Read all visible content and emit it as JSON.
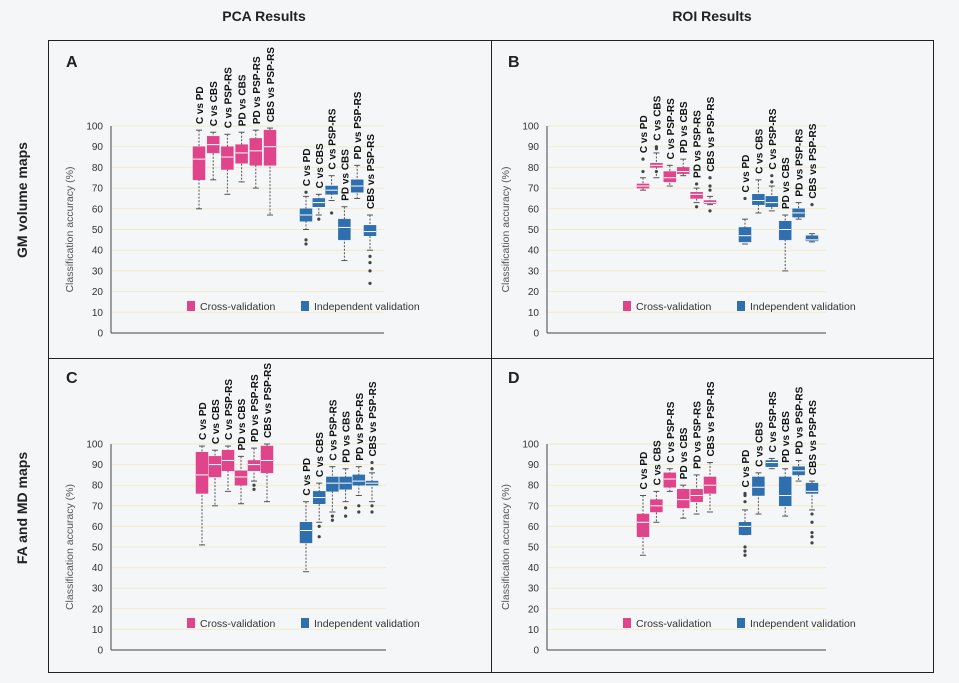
{
  "figure": {
    "col_headers": [
      "PCA Results",
      "ROI Results"
    ],
    "row_headers": [
      "GM volume maps",
      "FA and MD maps"
    ]
  },
  "colors": {
    "cross_validation": "#e0448a",
    "independent_validation": "#2f6fae",
    "frame": "#222222",
    "grid": "#f0ecc8"
  },
  "chart_data": [
    {
      "panel": "A",
      "type": "box",
      "ylabel": "Classification accuracy (%)",
      "ylim": [
        0,
        100
      ],
      "yticks": [
        0,
        10,
        20,
        30,
        40,
        50,
        60,
        70,
        80,
        90,
        100
      ],
      "legend": [
        "Cross-validation",
        "Independent validation"
      ],
      "groups": [
        {
          "name": "Cross-validation",
          "categories": [
            "C vs PD",
            "C vs CBS",
            "C vs PSP-RS",
            "PD vs CBS",
            "PD vs PSP-RS",
            "CBS vs PSP-RS"
          ],
          "boxes": [
            {
              "min": 60,
              "q1": 74,
              "median": 84,
              "q3": 90,
              "max": 98,
              "outliers": []
            },
            {
              "min": 74,
              "q1": 87,
              "median": 91,
              "q3": 95,
              "max": 97,
              "outliers": []
            },
            {
              "min": 67,
              "q1": 79,
              "median": 85,
              "q3": 90,
              "max": 96,
              "outliers": []
            },
            {
              "min": 73,
              "q1": 82,
              "median": 87,
              "q3": 91,
              "max": 97,
              "outliers": []
            },
            {
              "min": 70,
              "q1": 81,
              "median": 88,
              "q3": 94,
              "max": 98,
              "outliers": []
            },
            {
              "min": 57,
              "q1": 81,
              "median": 90,
              "q3": 98,
              "max": 99,
              "outliers": []
            }
          ]
        },
        {
          "name": "Independent validation",
          "categories": [
            "C vs PD",
            "C vs CBS",
            "C vs PSP-RS",
            "PD vs CBS",
            "PD vs PSP-RS",
            "CBS vs PSP-RS"
          ],
          "boxes": [
            {
              "min": 50,
              "q1": 54,
              "median": 57,
              "q3": 60,
              "max": 66,
              "outliers": [
                43,
                45,
                68
              ]
            },
            {
              "min": 57,
              "q1": 61,
              "median": 63,
              "q3": 65,
              "max": 67,
              "outliers": [
                55
              ]
            },
            {
              "min": 64,
              "q1": 67,
              "median": 69,
              "q3": 71,
              "max": 76,
              "outliers": [
                58
              ]
            },
            {
              "min": 35,
              "q1": 45,
              "median": 51,
              "q3": 55,
              "max": 61,
              "outliers": []
            },
            {
              "min": 65,
              "q1": 68,
              "median": 71,
              "q3": 74,
              "max": 81,
              "outliers": []
            },
            {
              "min": 40,
              "q1": 47,
              "median": 49,
              "q3": 52,
              "max": 57,
              "outliers": [
                24,
                30,
                34,
                37
              ]
            }
          ]
        }
      ]
    },
    {
      "panel": "B",
      "type": "box",
      "ylabel": "Classification accuracy (%)",
      "ylim": [
        0,
        100
      ],
      "yticks": [
        0,
        10,
        20,
        30,
        40,
        50,
        60,
        70,
        80,
        90,
        100
      ],
      "legend": [
        "Cross-validation",
        "Independent validation"
      ],
      "groups": [
        {
          "name": "Cross-validation",
          "categories": [
            "C vs PD",
            "C vs CBS",
            "C vs PSP-RS",
            "PD vs CBS",
            "PD vs PSP-RS",
            "CBS vs PSP-RS"
          ],
          "boxes": [
            {
              "min": 69,
              "q1": 70,
              "median": 71,
              "q3": 72,
              "max": 75,
              "outliers": [
                78,
                84
              ]
            },
            {
              "min": 75,
              "q1": 80,
              "median": 81,
              "q3": 82,
              "max": 87,
              "outliers": [
                89,
                90,
                78
              ]
            },
            {
              "min": 71,
              "q1": 73,
              "median": 75,
              "q3": 78,
              "max": 81,
              "outliers": []
            },
            {
              "min": 76,
              "q1": 77,
              "median": 78,
              "q3": 80,
              "max": 84,
              "outliers": []
            },
            {
              "min": 63,
              "q1": 65,
              "median": 67,
              "q3": 68,
              "max": 70,
              "outliers": [
                61,
                72
              ]
            },
            {
              "min": 62,
              "q1": 62.5,
              "median": 63,
              "q3": 64,
              "max": 66,
              "outliers": [
                59,
                69,
                71,
                75
              ]
            }
          ]
        },
        {
          "name": "Independent validation",
          "categories": [
            "C vs PD",
            "C vs CBS",
            "C vs PSP-RS",
            "PD vs CBS",
            "PD vs PSP-RS",
            "CBS vs PSP-RS"
          ],
          "boxes": [
            {
              "min": 43,
              "q1": 44,
              "median": 47,
              "q3": 51,
              "max": 55,
              "outliers": [
                65
              ]
            },
            {
              "min": 58,
              "q1": 62,
              "median": 64,
              "q3": 67,
              "max": 74,
              "outliers": []
            },
            {
              "min": 59,
              "q1": 61,
              "median": 63,
              "q3": 66,
              "max": 71,
              "outliers": [
                73,
                76
              ]
            },
            {
              "min": 30,
              "q1": 45,
              "median": 50,
              "q3": 54,
              "max": 57,
              "outliers": []
            },
            {
              "min": 55,
              "q1": 56,
              "median": 58,
              "q3": 60,
              "max": 63,
              "outliers": []
            },
            {
              "min": 44,
              "q1": 44.5,
              "median": 45,
              "q3": 47,
              "max": 48,
              "outliers": [
                62
              ]
            }
          ]
        }
      ]
    },
    {
      "panel": "C",
      "type": "box",
      "ylabel": "Classification accuracy (%)",
      "ylim": [
        0,
        100
      ],
      "yticks": [
        0,
        10,
        20,
        30,
        40,
        50,
        60,
        70,
        80,
        90,
        100
      ],
      "legend": [
        "Cross-validation",
        "Independent validation"
      ],
      "groups": [
        {
          "name": "Cross-validation",
          "categories": [
            "C vs PD",
            "C vs CBS",
            "C vs PSP-RS",
            "PD vs CBS",
            "PD vs PSP-RS",
            "CBS vs PSP-RS"
          ],
          "boxes": [
            {
              "min": 51,
              "q1": 76,
              "median": 85,
              "q3": 96,
              "max": 99,
              "outliers": []
            },
            {
              "min": 70,
              "q1": 84,
              "median": 90,
              "q3": 94,
              "max": 97,
              "outliers": []
            },
            {
              "min": 77,
              "q1": 87,
              "median": 92,
              "q3": 97,
              "max": 99,
              "outliers": []
            },
            {
              "min": 71,
              "q1": 80,
              "median": 84,
              "q3": 87,
              "max": 94,
              "outliers": []
            },
            {
              "min": 82,
              "q1": 87,
              "median": 90,
              "q3": 92,
              "max": 98,
              "outliers": [
                78,
                80
              ]
            },
            {
              "min": 72,
              "q1": 86,
              "median": 92,
              "q3": 99,
              "max": 100,
              "outliers": []
            }
          ]
        },
        {
          "name": "Independent validation",
          "categories": [
            "C vs PD",
            "C vs CBS",
            "C vs PSP-RS",
            "PD vs CBS",
            "PD vs PSP-RS",
            "CBS vs PSP-RS"
          ],
          "boxes": [
            {
              "min": 38,
              "q1": 52,
              "median": 58,
              "q3": 62,
              "max": 72,
              "outliers": []
            },
            {
              "min": 62,
              "q1": 71,
              "median": 74,
              "q3": 77,
              "max": 81,
              "outliers": [
                55,
                60
              ]
            },
            {
              "min": 67,
              "q1": 77,
              "median": 81,
              "q3": 84,
              "max": 89,
              "outliers": [
                63,
                65
              ]
            },
            {
              "min": 72,
              "q1": 78,
              "median": 81,
              "q3": 84,
              "max": 88,
              "outliers": [
                65,
                69
              ]
            },
            {
              "min": 75,
              "q1": 80,
              "median": 82,
              "q3": 85,
              "max": 89,
              "outliers": [
                67,
                70
              ]
            },
            {
              "min": 72,
              "q1": 80,
              "median": 81,
              "q3": 82,
              "max": 86,
              "outliers": [
                67,
                70,
                88,
                91
              ]
            }
          ]
        }
      ]
    },
    {
      "panel": "D",
      "type": "box",
      "ylabel": "Classification accuracy (%)",
      "ylim": [
        0,
        100
      ],
      "yticks": [
        0,
        10,
        20,
        30,
        40,
        50,
        60,
        70,
        80,
        90,
        100
      ],
      "legend": [
        "Cross-validation",
        "Independent validation"
      ],
      "groups": [
        {
          "name": "Cross-validation",
          "categories": [
            "C vs PD",
            "C vs CBS",
            "C vs PSP-RS",
            "PD vs CBS",
            "PD vs PSP-RS",
            "CBS vs PSP-RS"
          ],
          "boxes": [
            {
              "min": 46,
              "q1": 55,
              "median": 62,
              "q3": 66,
              "max": 75,
              "outliers": []
            },
            {
              "min": 62,
              "q1": 67,
              "median": 70,
              "q3": 73,
              "max": 77,
              "outliers": []
            },
            {
              "min": 77,
              "q1": 79,
              "median": 83,
              "q3": 86,
              "max": 88,
              "outliers": []
            },
            {
              "min": 64,
              "q1": 69,
              "median": 73,
              "q3": 78,
              "max": 80,
              "outliers": []
            },
            {
              "min": 66,
              "q1": 72,
              "median": 75,
              "q3": 78,
              "max": 85,
              "outliers": []
            },
            {
              "min": 67,
              "q1": 76,
              "median": 80,
              "q3": 84,
              "max": 91,
              "outliers": []
            }
          ]
        },
        {
          "name": "Independent validation",
          "categories": [
            "C vs PD",
            "C vs CBS",
            "C vs PSP-RS",
            "PD vs CBS",
            "PD vs PSP-RS",
            "CBS vs PSP-RS"
          ],
          "boxes": [
            {
              "min": 56,
              "q1": 56,
              "median": 60,
              "q3": 62,
              "max": 68,
              "outliers": [
                46,
                48,
                50,
                72,
                75,
                76
              ]
            },
            {
              "min": 66,
              "q1": 75,
              "median": 79,
              "q3": 84,
              "max": 86,
              "outliers": []
            },
            {
              "min": 88,
              "q1": 89,
              "median": 91,
              "q3": 92,
              "max": 93,
              "outliers": []
            },
            {
              "min": 65,
              "q1": 70,
              "median": 75,
              "q3": 84,
              "max": 88,
              "outliers": []
            },
            {
              "min": 82,
              "q1": 85,
              "median": 87,
              "q3": 89,
              "max": 92,
              "outliers": []
            },
            {
              "min": 68,
              "q1": 76,
              "median": 77,
              "q3": 81,
              "max": 82,
              "outliers": [
                52,
                55,
                57,
                62,
                66
              ]
            }
          ]
        }
      ]
    }
  ]
}
